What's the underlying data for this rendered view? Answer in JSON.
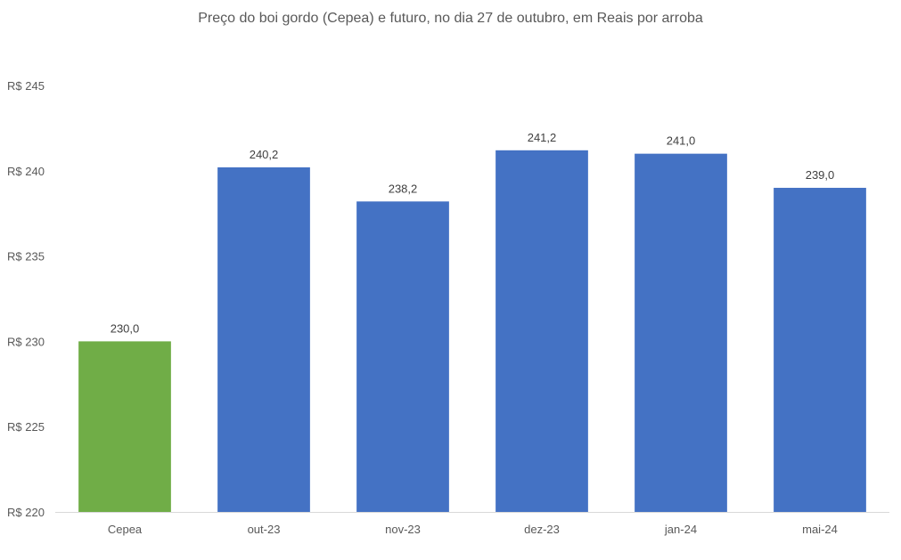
{
  "chart_data": {
    "type": "bar",
    "title": "Preço do boi gordo (Cepea) e futuro, no dia 27 de outubro, em Reais por arroba",
    "categories": [
      "Cepea",
      "out-23",
      "nov-23",
      "dez-23",
      "jan-24",
      "mai-24"
    ],
    "values": [
      230.0,
      240.2,
      238.2,
      241.2,
      241.0,
      239.0
    ],
    "data_labels": [
      "230,0",
      "240,2",
      "238,2",
      "241,2",
      "241,0",
      "239,0"
    ],
    "bar_colors": [
      "#70ad47",
      "#4472c4",
      "#4472c4",
      "#4472c4",
      "#4472c4",
      "#4472c4"
    ],
    "ylim": [
      220,
      245
    ],
    "y_ticks": [
      220,
      225,
      230,
      235,
      240,
      245
    ],
    "y_tick_labels": [
      "R$ 220",
      "R$ 225",
      "R$ 230",
      "R$ 235",
      "R$ 240",
      "R$ 245"
    ],
    "grid": false,
    "legend": "none"
  }
}
